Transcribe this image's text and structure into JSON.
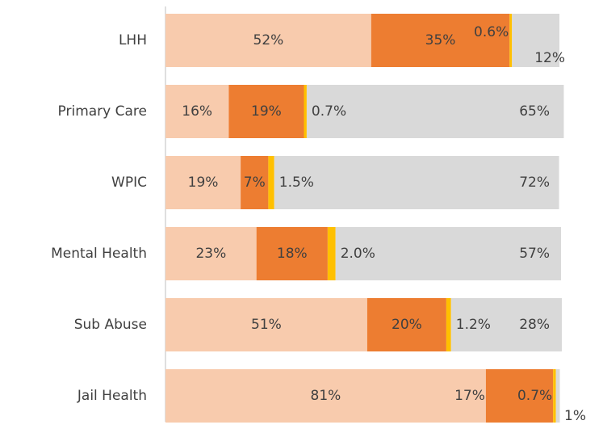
{
  "chart_data": {
    "type": "stacked-bar-horizontal",
    "categories": [
      "LHH",
      "Primary Care",
      "WPIC",
      "Mental Health",
      "Sub Abuse",
      "Jail Health"
    ],
    "series": [
      {
        "color": "#F8CBAD",
        "values": [
          52,
          16,
          19,
          23,
          51,
          81
        ],
        "value_labels": [
          "52%",
          "16%",
          "19%",
          "23%",
          "51%",
          "81%"
        ]
      },
      {
        "color": "#ED7D31",
        "values": [
          35,
          19,
          7,
          18,
          20,
          17
        ],
        "value_labels": [
          "35%",
          "19%",
          "7%",
          "18%",
          "20%",
          "17%"
        ]
      },
      {
        "color": "#FFC000",
        "values": [
          0.6,
          0.7,
          1.5,
          2.0,
          1.2,
          0.7
        ],
        "value_labels": [
          "0.6%",
          "0.7%",
          "1.5%",
          "2.0%",
          "1.2%",
          "0.7%"
        ]
      },
      {
        "color": "#D9D9D9",
        "values": [
          12,
          65,
          72,
          57,
          28,
          1
        ],
        "value_labels": [
          "12%",
          "65%",
          "72%",
          "57%",
          "28%",
          "1%"
        ]
      }
    ],
    "xlim": [
      0,
      100
    ]
  }
}
